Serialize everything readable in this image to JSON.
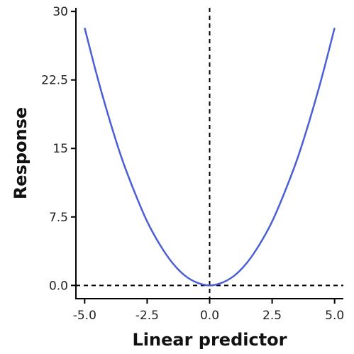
{
  "chart_data": {
    "type": "line",
    "xlabel": "Linear predictor",
    "ylabel": "Response",
    "xlim": [
      -5.35,
      5.35
    ],
    "ylim": [
      -1.45,
      30.4
    ],
    "x_ticks": [
      -5.0,
      -2.5,
      0.0,
      2.5,
      5.0
    ],
    "x_tick_labels": [
      "-5.0",
      "-2.5",
      "0.0",
      "2.5",
      "5.0"
    ],
    "y_ticks": [
      0,
      7.5,
      15,
      22.5,
      30
    ],
    "y_tick_labels": [
      "0.0",
      "7.5",
      "15",
      "22.5",
      "30"
    ],
    "reference_lines": [
      {
        "orientation": "vertical",
        "value": 0,
        "style": "dashed",
        "color": "#000000"
      },
      {
        "orientation": "horizontal",
        "value": 0,
        "style": "dashed",
        "color": "#000000"
      }
    ],
    "series": [
      {
        "color": "#4a5fd6",
        "x": [
          -5.0,
          -4.5,
          -4.0,
          -3.5,
          -3.0,
          -2.5,
          -2.0,
          -1.5,
          -1.0,
          -0.5,
          0.0,
          0.5,
          1.0,
          1.5,
          2.0,
          2.5,
          3.0,
          3.5,
          4.0,
          4.5,
          5.0
        ],
        "y": [
          28.2,
          22.9,
          18.1,
          13.8,
          10.2,
          7.0,
          4.5,
          2.5,
          1.1,
          0.3,
          0.0,
          0.3,
          1.1,
          2.5,
          4.5,
          7.0,
          10.2,
          13.8,
          18.1,
          22.9,
          28.2
        ]
      }
    ],
    "grid": false,
    "legend": "none"
  }
}
